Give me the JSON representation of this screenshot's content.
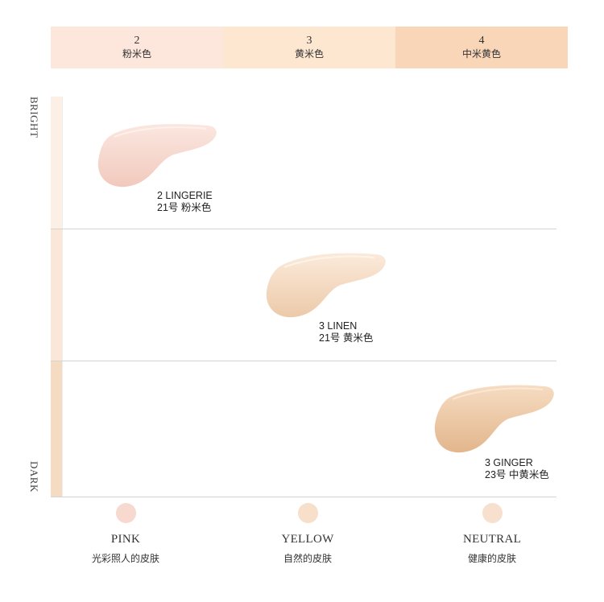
{
  "header": {
    "shades": [
      {
        "num": "2",
        "name": "粉米色",
        "bg": "#fde6dc"
      },
      {
        "num": "3",
        "name": "黄米色",
        "bg": "#fde7d1"
      },
      {
        "num": "4",
        "name": "中米黄色",
        "bg": "#f9d6b8"
      }
    ]
  },
  "axis": {
    "top": "BRIGHT",
    "bottom": "DARK"
  },
  "swatches": [
    {
      "line1": "2 LINGERIE",
      "line2": "21号 粉米色",
      "color": "#f6d3c7"
    },
    {
      "line1": "3 LINEN",
      "line2": "21号 黄米色",
      "color": "#f3d8bc"
    },
    {
      "line1": "3 GINGER",
      "line2": "23号 中黄米色",
      "color": "#ecc7a2"
    }
  ],
  "tones": [
    {
      "title": "PINK",
      "sub": "光彩照人的皮肤",
      "color": "#f7d9cf"
    },
    {
      "title": "YELLOW",
      "sub": "自然的皮肤",
      "color": "#f7dfca"
    },
    {
      "title": "NEUTRAL",
      "sub": "健康的皮肤",
      "color": "#f8e0cf"
    }
  ]
}
